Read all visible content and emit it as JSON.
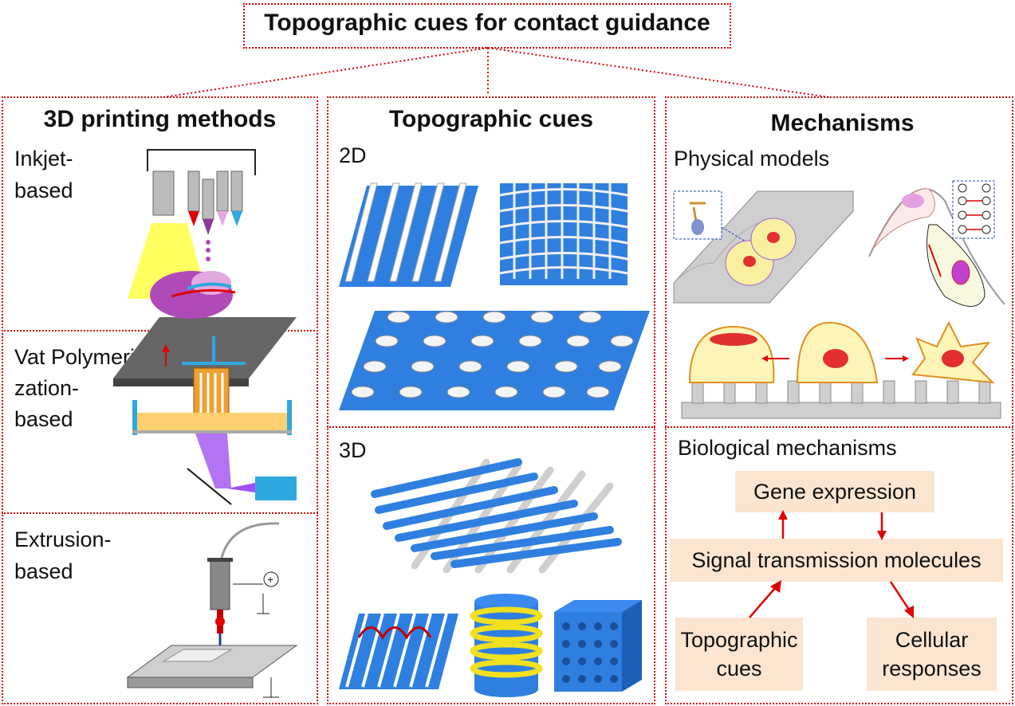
{
  "title": "Topographic cues for contact guidance",
  "panels": {
    "printing": {
      "heading": "3D printing methods",
      "inkjet": [
        "Inkjet-",
        "based"
      ],
      "vat": [
        "Vat Polymeri-",
        "zation-",
        "based"
      ],
      "extrusion": [
        "Extrusion-",
        "based"
      ]
    },
    "cues": {
      "heading": "Topographic cues",
      "label_2d": "2D",
      "label_3d": "3D"
    },
    "mechanisms": {
      "heading": "Mechanisms",
      "physical": "Physical models",
      "biological": "Biological mechanisms",
      "gene": "Gene expression",
      "signal": "Signal transmission molecules",
      "topo": [
        "Topographic",
        "cues"
      ],
      "cellular": [
        "Cellular",
        "responses"
      ]
    }
  },
  "colors": {
    "border": "#d40000",
    "pill": "#fbe5d0",
    "blue": "#2f7fe0",
    "arrow": "#e00000"
  }
}
